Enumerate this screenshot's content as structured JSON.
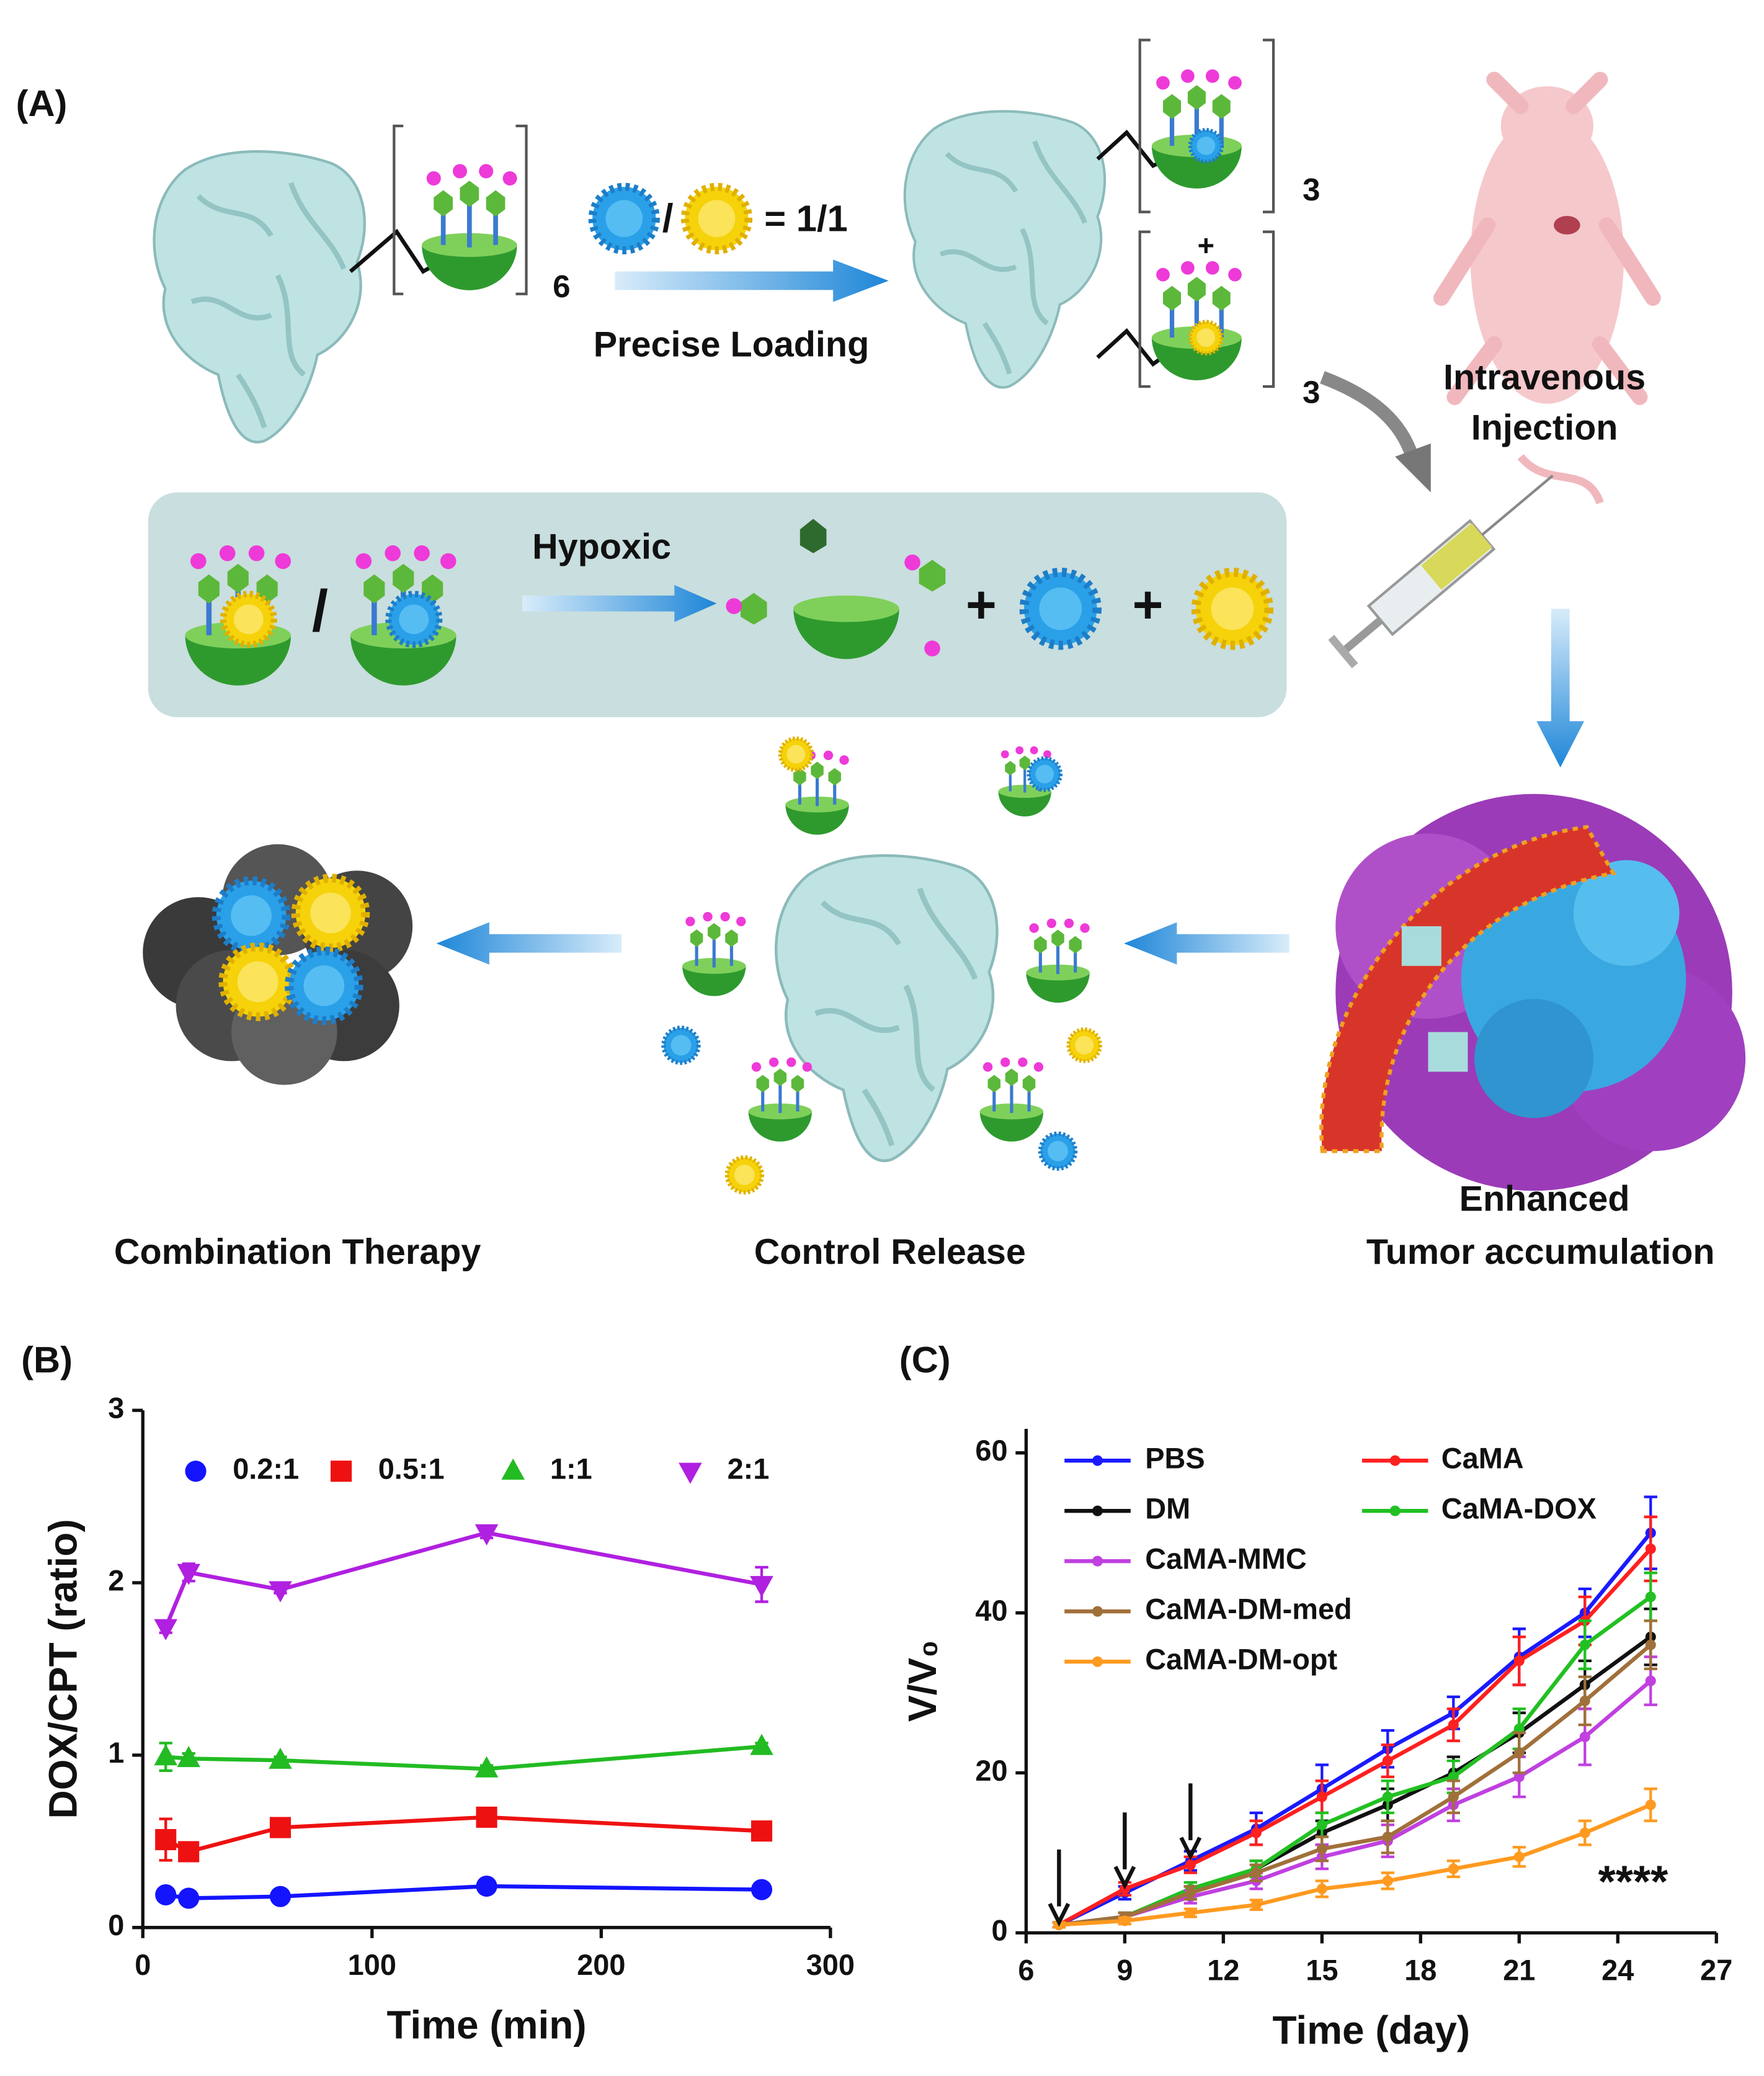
{
  "panel_labels": [
    "(A)",
    "(B)",
    "(C)"
  ],
  "panel_a": {
    "count_six": "6",
    "count_three_top": "3",
    "count_three_bottom": "3",
    "plus_top": "+",
    "ratio_slash": "/",
    "ratio_equals": "= 1/1",
    "precise_loading": "Precise Loading",
    "injection_line1": "Intravenous",
    "injection_line2": "Injection",
    "hypoxic": "Hypoxic",
    "box_slash": "/",
    "box_plus_1": "+",
    "box_plus_2": "+",
    "enhanced_line1": "Enhanced",
    "enhanced_line2": "Tumor accumulation",
    "control_release": "Control Release",
    "combination_therapy": "Combination Therapy"
  },
  "chart_data": [
    {
      "type": "line",
      "xlabel": "Time (min)",
      "ylabel": "DOX/CPT (ratio)",
      "x": [
        10,
        20,
        60,
        150,
        270
      ],
      "xlim": [
        0,
        300
      ],
      "xticks": [
        0,
        100,
        200,
        300
      ],
      "ylim": [
        0,
        3
      ],
      "yticks": [
        0,
        1,
        2,
        3
      ],
      "grid": false,
      "legend": "top",
      "series": [
        {
          "name": "0.2:1",
          "color": "#1414ff",
          "marker": "circle",
          "values": [
            0.19,
            0.17,
            0.18,
            0.24,
            0.22
          ],
          "errors": [
            0.02,
            0.02,
            0.02,
            0.02,
            0.02
          ]
        },
        {
          "name": "0.5:1",
          "color": "#ee1111",
          "marker": "square",
          "values": [
            0.51,
            0.44,
            0.58,
            0.64,
            0.56
          ],
          "errors": [
            0.12,
            0.03,
            0.03,
            0.03,
            0.03
          ]
        },
        {
          "name": "1:1",
          "color": "#22bb22",
          "marker": "triangle",
          "values": [
            0.99,
            0.98,
            0.97,
            0.92,
            1.05
          ],
          "errors": [
            0.08,
            0.03,
            0.02,
            0.02,
            0.02
          ]
        },
        {
          "name": "2:1",
          "color": "#b020e0",
          "marker": "triangle-down",
          "values": [
            1.74,
            2.06,
            1.96,
            2.29,
            1.99
          ],
          "errors": [
            0.03,
            0.05,
            0.02,
            0.03,
            0.1
          ]
        }
      ]
    },
    {
      "type": "line",
      "xlabel": "Time (day)",
      "ylabel": "V/V₀",
      "x": [
        7,
        9,
        11,
        13,
        15,
        17,
        19,
        21,
        23,
        25
      ],
      "xlim": [
        6,
        27
      ],
      "xticks": [
        6,
        9,
        12,
        15,
        18,
        21,
        24,
        27
      ],
      "ylim": [
        0,
        63
      ],
      "yticks": [
        0,
        20,
        40,
        60
      ],
      "grid": false,
      "legend": "top-left",
      "annotation": "****",
      "dose_arrows": [
        7,
        9,
        11
      ],
      "series": [
        {
          "name": "PBS",
          "color": "#1a1aff",
          "marker": "dot",
          "values": [
            1,
            5,
            9,
            13,
            18,
            23,
            27.5,
            34.5,
            40,
            50
          ],
          "errors": [
            0.3,
            0.8,
            1.2,
            2,
            3,
            2.3,
            2,
            3.5,
            3,
            4.5
          ]
        },
        {
          "name": "CaMA",
          "color": "#ff2020",
          "marker": "dot",
          "values": [
            1,
            5.5,
            8.5,
            12.5,
            17,
            21.5,
            26,
            34,
            39,
            48
          ],
          "errors": [
            0.3,
            0.8,
            1,
            1.5,
            2,
            2,
            2,
            3,
            3,
            4
          ]
        },
        {
          "name": "DM",
          "color": "#111111",
          "marker": "dot",
          "values": [
            1,
            2,
            5,
            8,
            12.5,
            16,
            20,
            25,
            31,
            37
          ],
          "errors": [
            0.3,
            0.5,
            0.8,
            1,
            1.5,
            2,
            2,
            2.5,
            3,
            3.5
          ]
        },
        {
          "name": "CaMA-DOX",
          "color": "#22c022",
          "marker": "dot",
          "values": [
            1,
            2,
            5.5,
            8,
            13.5,
            17,
            19.5,
            25.5,
            36,
            42
          ],
          "errors": [
            0.3,
            0.5,
            0.8,
            1,
            1.5,
            2,
            2,
            2.5,
            3,
            3
          ]
        },
        {
          "name": "CaMA-MMC",
          "color": "#c040e0",
          "marker": "dot",
          "values": [
            1,
            2,
            4.5,
            6.5,
            9.5,
            11.5,
            16,
            19.5,
            24.5,
            31.5
          ],
          "errors": [
            0.3,
            0.5,
            0.8,
            1,
            1.5,
            2,
            2,
            2.5,
            3.5,
            3
          ]
        },
        {
          "name": "CaMA-DM-med",
          "color": "#a0703a",
          "marker": "dot",
          "values": [
            1,
            2,
            5,
            7.5,
            10.5,
            12,
            17,
            22.5,
            29,
            36
          ],
          "errors": [
            0.3,
            0.5,
            0.8,
            1,
            1.5,
            2,
            2,
            2.5,
            3,
            3
          ]
        },
        {
          "name": "CaMA-DM-opt",
          "color": "#ff9a20",
          "marker": "dot",
          "values": [
            1,
            1.5,
            2.5,
            3.5,
            5.5,
            6.5,
            8,
            9.5,
            12.5,
            16
          ],
          "errors": [
            0.3,
            0.4,
            0.5,
            0.6,
            1,
            1,
            1,
            1.2,
            1.5,
            2
          ]
        }
      ]
    }
  ]
}
